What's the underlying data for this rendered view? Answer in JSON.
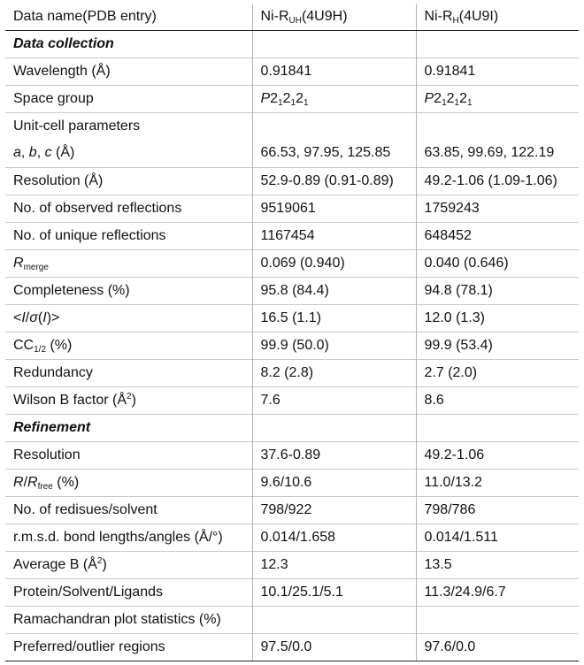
{
  "header": {
    "c1": "Data name(PDB entry)",
    "c2_pre": "Ni-R",
    "c2_sub": "UH",
    "c2_post": "(4U9H)",
    "c3_pre": "Ni-R",
    "c3_sub": "H",
    "c3_post": "(4U9I)"
  },
  "sections": {
    "data_collection": "Data collection",
    "refinement": "Refinement"
  },
  "rows": {
    "wavelength": {
      "label": "Wavelength (Å)",
      "v1": "0.91841",
      "v2": "0.91841"
    },
    "space_group": {
      "label": "Space group",
      "p": "P",
      "two": "2",
      "one": "1"
    },
    "unit_cell": {
      "label": "Unit-cell parameters"
    },
    "abc": {
      "a": "a",
      "b": "b",
      "c": "c",
      "sep": ", ",
      "unit": " (Å)",
      "v1": "66.53, 97.95, 125.85",
      "v2": "63.85, 99.69, 122.19"
    },
    "resolution_dc": {
      "label": "Resolution (Å)",
      "v1": "52.9-0.89 (0.91-0.89)",
      "v2": "49.2-1.06 (1.09-1.06)"
    },
    "observed": {
      "label": "No. of observed reflections",
      "v1": "9519061",
      "v2": "1759243"
    },
    "unique": {
      "label": "No. of unique reflections",
      "v1": "1167454",
      "v2": "648452"
    },
    "rmerge": {
      "r": "R",
      "sub": "merge",
      "v1": "0.069 (0.940)",
      "v2": "0.040 (0.646)"
    },
    "completeness": {
      "label": "Completeness (%)",
      "v1": "95.8 (84.4)",
      "v2": "94.8 (78.1)"
    },
    "isigma": {
      "lt": "<",
      "i1": "I",
      "slash": "/",
      "sigma": "σ",
      "lp": "(",
      "i2": "I",
      "rp": ")",
      "gt": ">",
      "v1": "16.5 (1.1)",
      "v2": "12.0 (1.3)"
    },
    "cc": {
      "cc": "CC",
      "sub": "1/2",
      "post": " (%)",
      "v1": "99.9 (50.0)",
      "v2": "99.9 (53.4)"
    },
    "redundancy": {
      "label": "Redundancy",
      "v1": "8.2 (2.8)",
      "v2": "2.7 (2.0)"
    },
    "wilson": {
      "pre": "Wilson B factor (Å",
      "sup": "2",
      "post": ")",
      "v1": "7.6",
      "v2": "8.6"
    },
    "resolution_ref": {
      "label": "Resolution",
      "v1": "37.6-0.89",
      "v2": "49.2-1.06"
    },
    "rfree": {
      "r": "R",
      "slash": "/",
      "r2": "R",
      "sub": "free",
      "post": " (%)",
      "v1": "9.6/10.6",
      "v2": "11.0/13.2"
    },
    "residues": {
      "label": "No. of redisues/solvent",
      "v1": "798/922",
      "v2": "798/786"
    },
    "rmsd": {
      "label": "r.m.s.d. bond lengths/angles (Å/°)",
      "v1": "0.014/1.658",
      "v2": "0.014/1.511"
    },
    "avg_b": {
      "pre": "Average B (Å",
      "sup": "2",
      "post": ")",
      "v1": "12.3",
      "v2": "13.5"
    },
    "psl": {
      "label": "Protein/Solvent/Ligands",
      "v1": "10.1/25.1/5.1",
      "v2": "11.3/24.9/6.7"
    },
    "rama": {
      "label": "Ramachandran plot statistics (%)"
    },
    "preferred": {
      "label": "Preferred/outlier regions",
      "v1": "97.5/0.0",
      "v2": "97.6/0.0"
    }
  }
}
